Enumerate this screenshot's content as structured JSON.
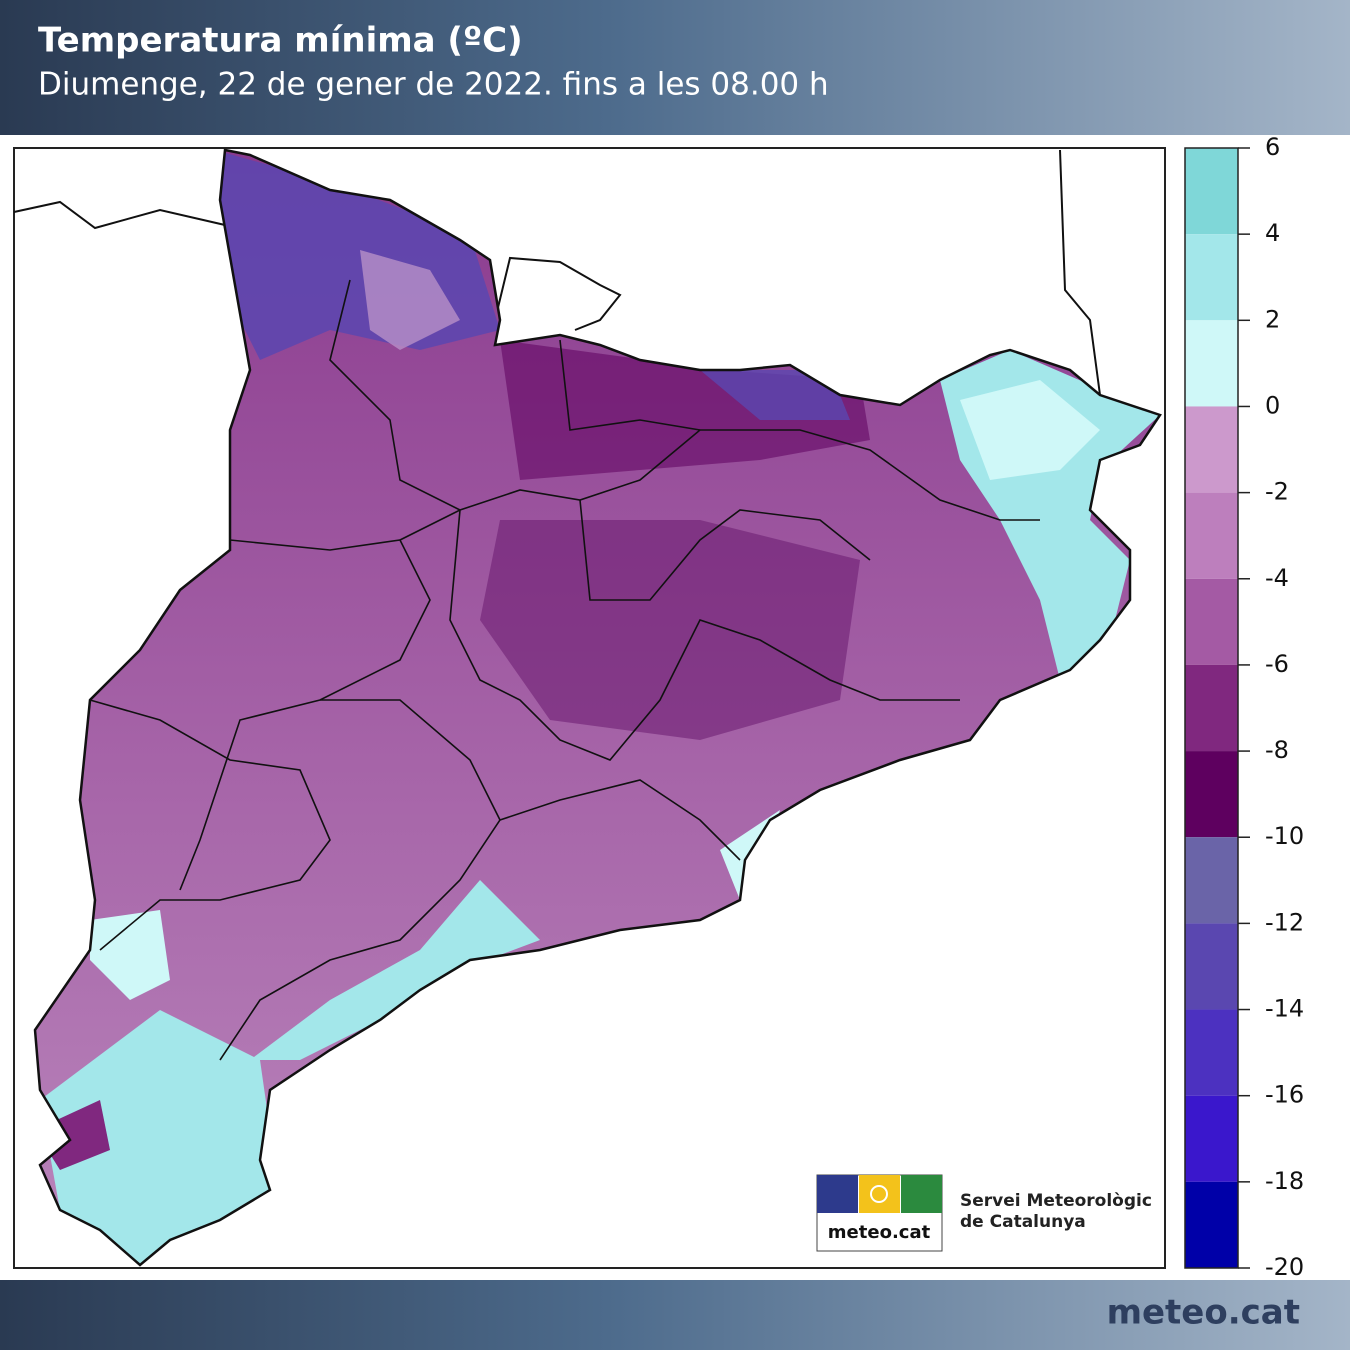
{
  "header": {
    "title": "Temperatura mínima (ºC)",
    "subtitle": "Diumenge, 22 de gener de 2022. fins a les 08.00 h"
  },
  "colorbar": {
    "range": [
      -20,
      6
    ],
    "ticks": [
      6,
      4,
      2,
      0,
      -2,
      -4,
      -6,
      -8,
      -10,
      -12,
      -14,
      -16,
      -18,
      -20
    ],
    "colors": [
      "#7fd7d8",
      "#a3e7ea",
      "#cff8f8",
      "#cc99cc",
      "#bd7fbd",
      "#a45aa4",
      "#80287f",
      "#5e005f",
      "#6a64a8",
      "#5a47b0",
      "#4c31c0",
      "#3a17cc",
      "#0000a8"
    ]
  },
  "logo": {
    "brand": "meteo.cat",
    "org_line1": "Servei Meteorològic",
    "org_line2": "de Catalunya"
  },
  "footer": {
    "brand": "meteo.cat"
  }
}
